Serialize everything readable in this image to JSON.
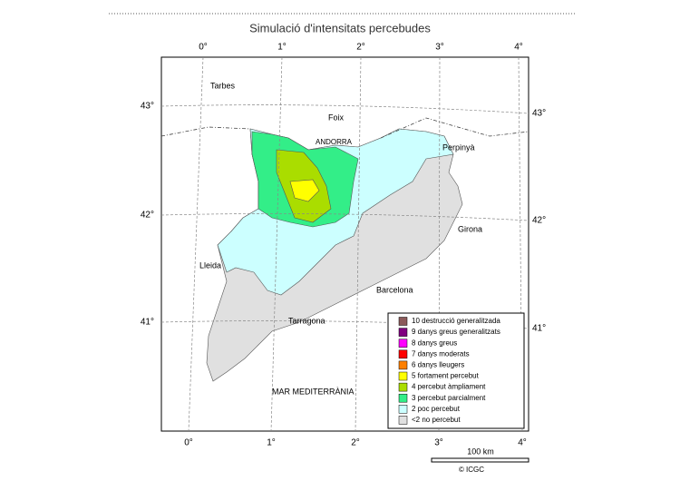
{
  "header": {
    "title": "Simulació d'intensitats percebudes"
  },
  "axes": {
    "top_labels": [
      "0°",
      "1°",
      "2°",
      "3°",
      "4°"
    ],
    "bottom_labels": [
      "0°",
      "1°",
      "2°",
      "3°",
      "4°"
    ],
    "left_labels": [
      "43°",
      "42°",
      "41°"
    ],
    "right_labels": [
      "43°",
      "42°",
      "41°"
    ]
  },
  "places": [
    "Tarbes",
    "Foix",
    "ANDORRA",
    "Perpinyà",
    "Girona",
    "Lleida",
    "Barcelona",
    "Tarragona",
    "MAR MEDITERRÀNIA"
  ],
  "legend": {
    "items": [
      {
        "label": "10 destrucció generalitzada",
        "color": "#8b5a5a"
      },
      {
        "label": "9 danys greus generalitzats",
        "color": "#800080"
      },
      {
        "label": "8 danys greus",
        "color": "#ff00ff"
      },
      {
        "label": "7 danys moderats",
        "color": "#ff0000"
      },
      {
        "label": "6 danys lleugers",
        "color": "#ff8000"
      },
      {
        "label": "5 fortament percebut",
        "color": "#ffff00"
      },
      {
        "label": "4 percebut àmpliament",
        "color": "#aadd00"
      },
      {
        "label": "3 percebut parcialment",
        "color": "#33ee88"
      },
      {
        "label": "2 poc percebut",
        "color": "#ccffff"
      },
      {
        "label": "<2 no percebut",
        "color": "#e0e0e0"
      }
    ]
  },
  "scale": {
    "label": "100 km"
  },
  "credit": "© ICGC"
}
